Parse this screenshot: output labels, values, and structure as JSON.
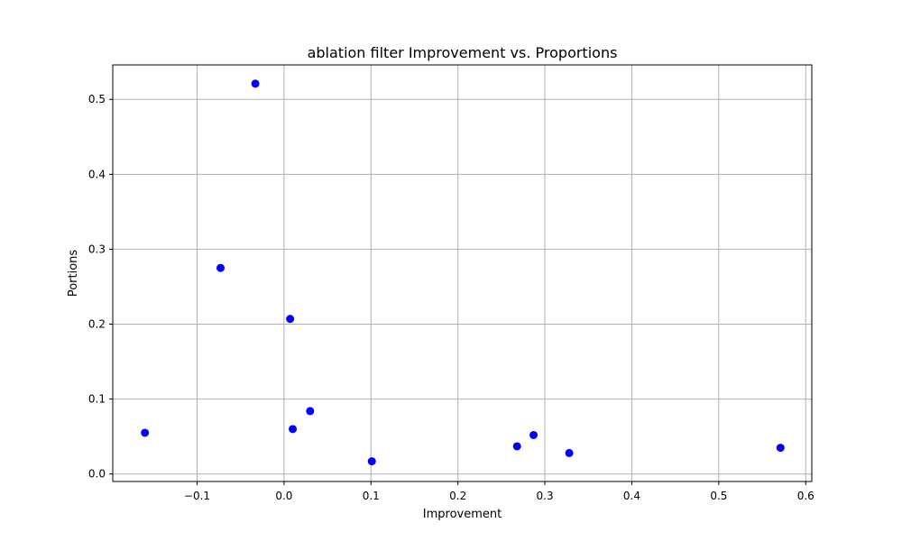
{
  "chart_data": {
    "type": "scatter",
    "title": "ablation filter Improvement vs. Proportions",
    "xlabel": "Improvement",
    "ylabel": "Portions",
    "xlim": [
      -0.197,
      0.607
    ],
    "ylim": [
      -0.01,
      0.546
    ],
    "xticks": [
      -0.1,
      0.0,
      0.1,
      0.2,
      0.3,
      0.4,
      0.5,
      0.6
    ],
    "xtick_labels": [
      "−0.1",
      "0.0",
      "0.1",
      "0.2",
      "0.3",
      "0.4",
      "0.5",
      "0.6"
    ],
    "yticks": [
      0.0,
      0.1,
      0.2,
      0.3,
      0.4,
      0.5
    ],
    "ytick_labels": [
      "0.0",
      "0.1",
      "0.2",
      "0.3",
      "0.4",
      "0.5"
    ],
    "grid": true,
    "point_color": "#0000ff",
    "grid_color": "#b0b0b0",
    "points": [
      {
        "x": -0.16,
        "y": 0.055
      },
      {
        "x": -0.073,
        "y": 0.275
      },
      {
        "x": -0.033,
        "y": 0.521
      },
      {
        "x": 0.007,
        "y": 0.207
      },
      {
        "x": 0.01,
        "y": 0.06
      },
      {
        "x": 0.03,
        "y": 0.084
      },
      {
        "x": 0.101,
        "y": 0.017
      },
      {
        "x": 0.268,
        "y": 0.037
      },
      {
        "x": 0.287,
        "y": 0.052
      },
      {
        "x": 0.328,
        "y": 0.028
      },
      {
        "x": 0.571,
        "y": 0.035
      }
    ]
  }
}
